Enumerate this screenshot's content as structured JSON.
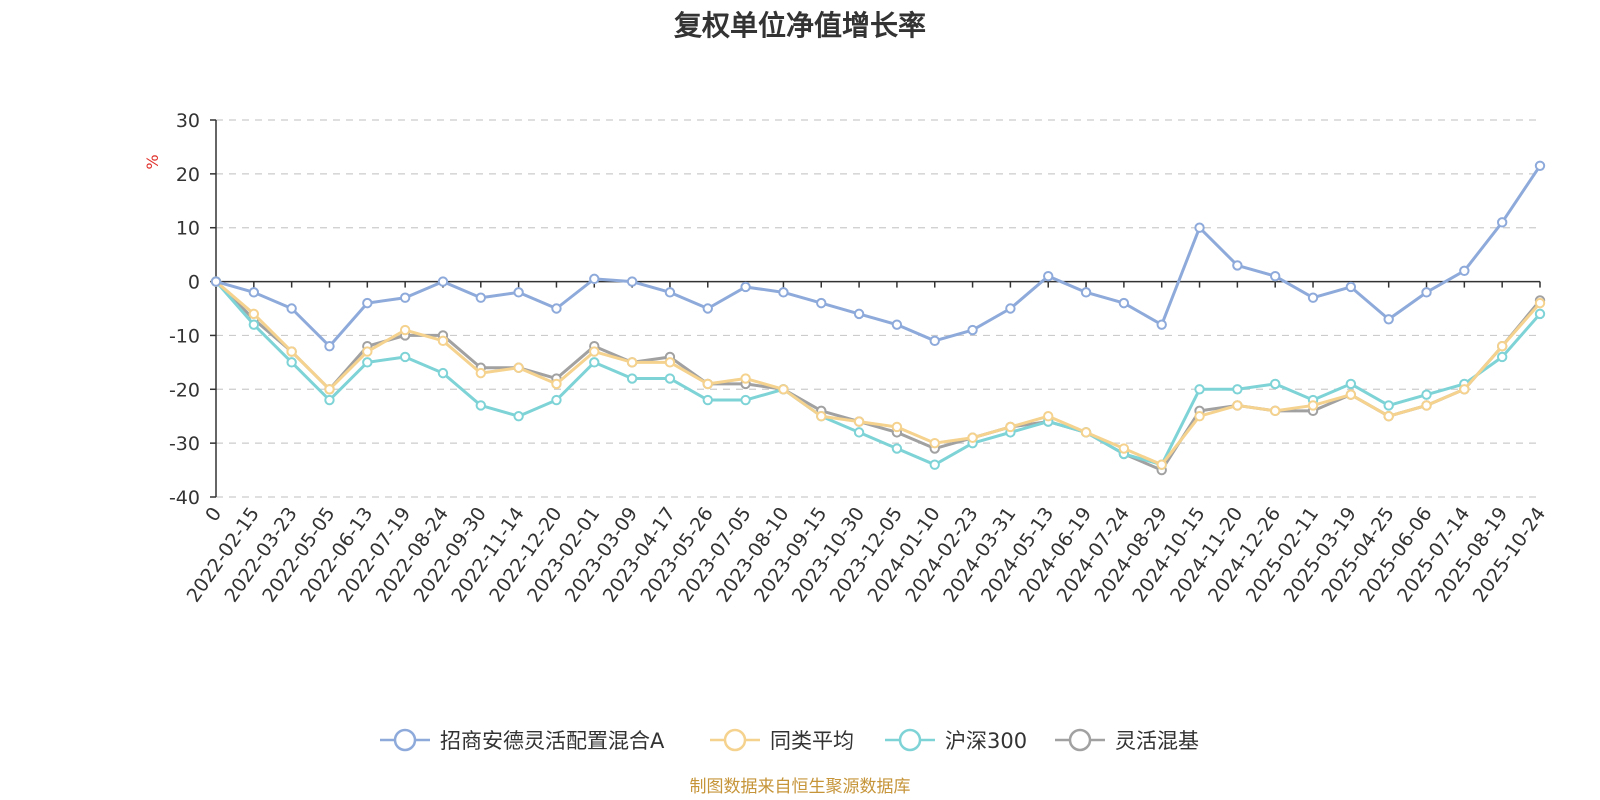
{
  "chart_data": {
    "type": "line",
    "title": "复权单位净值增长率",
    "ylabel": "%",
    "ylim": [
      -40,
      30
    ],
    "yticks": [
      30,
      20,
      10,
      0,
      -10,
      -20,
      -30,
      -40
    ],
    "categories": [
      "0",
      "2022-02-15",
      "2022-03-23",
      "2022-05-05",
      "2022-06-13",
      "2022-07-19",
      "2022-08-24",
      "2022-09-30",
      "2022-11-14",
      "2022-12-20",
      "2023-02-01",
      "2023-03-09",
      "2023-04-17",
      "2023-05-26",
      "2023-07-05",
      "2023-08-10",
      "2023-09-15",
      "2023-10-30",
      "2023-12-05",
      "2024-01-10",
      "2024-02-23",
      "2024-03-31",
      "2024-05-13",
      "2024-06-19",
      "2024-07-24",
      "2024-08-29",
      "2024-10-15",
      "2024-11-20",
      "2024-12-26",
      "2025-02-11",
      "2025-03-19",
      "2025-04-25",
      "2025-06-06",
      "2025-07-14",
      "2025-08-19",
      "2025-10-24"
    ],
    "series": [
      {
        "name": "招商安德灵活配置混合A",
        "color": "#8eaadb",
        "values": [
          0,
          -2,
          -5,
          -12,
          -4,
          -3,
          0,
          -3,
          -2,
          -5,
          0.5,
          0,
          -2,
          -5,
          -1,
          -2,
          -4,
          -6,
          -8,
          -11,
          -9,
          -5,
          1,
          -2,
          -4,
          -8,
          10,
          3,
          1,
          -3,
          -1,
          -7,
          -2,
          2,
          11,
          21.5
        ]
      },
      {
        "name": "同类平均",
        "color": "#f5d28e",
        "values": [
          0,
          -6,
          -13,
          -20,
          -13,
          -9,
          -11,
          -17,
          -16,
          -19,
          -13,
          -15,
          -15,
          -19,
          -18,
          -20,
          -25,
          -26,
          -27,
          -30,
          -29,
          -27,
          -25,
          -28,
          -31,
          -34,
          -25,
          -23,
          -24,
          -23,
          -21,
          -25,
          -23,
          -20,
          -12,
          -4
        ]
      },
      {
        "name": "沪深300",
        "color": "#7ed3d7",
        "values": [
          0,
          -8,
          -15,
          -22,
          -15,
          -14,
          -17,
          -23,
          -25,
          -22,
          -15,
          -18,
          -18,
          -22,
          -22,
          -20,
          -25,
          -28,
          -31,
          -34,
          -30,
          -28,
          -26,
          -28,
          -32,
          -34,
          -20,
          -20,
          -19,
          -22,
          -19,
          -23,
          -21,
          -19,
          -14,
          -6
        ]
      },
      {
        "name": "灵活混基",
        "color": "#a1a1a1",
        "values": [
          0,
          -7,
          -13,
          -20,
          -12,
          -10,
          -10,
          -16,
          -16,
          -18,
          -12,
          -15,
          -14,
          -19,
          -19,
          -20,
          -24,
          -26,
          -28,
          -31,
          -29,
          -27,
          -26,
          -28,
          -32,
          -35,
          -24,
          -23,
          -24,
          -24,
          -21,
          -25,
          -23,
          -20,
          -12,
          -3.5
        ]
      }
    ]
  },
  "legend": {
    "items": [
      {
        "label": "招商安德灵活配置混合A",
        "color": "#8eaadb"
      },
      {
        "label": "同类平均",
        "color": "#f5d28e"
      },
      {
        "label": "沪深300",
        "color": "#7ed3d7"
      },
      {
        "label": "灵活混基",
        "color": "#a1a1a1"
      }
    ]
  },
  "source_note": "制图数据来自恒生聚源数据库"
}
